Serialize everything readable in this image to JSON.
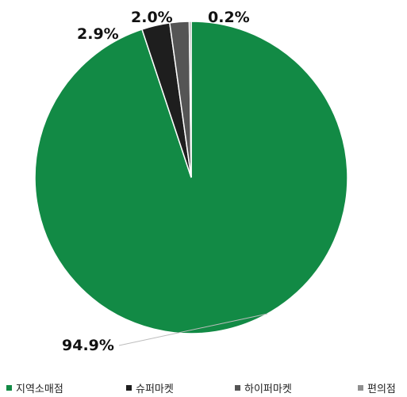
{
  "chart_data": {
    "type": "pie",
    "categories": [
      "지역소매점",
      "슈퍼마켓",
      "하이퍼마켓",
      "편의점"
    ],
    "values": [
      94.9,
      2.9,
      2.0,
      0.2
    ],
    "data_labels": [
      "94.9%",
      "2.9%",
      "2.0%",
      "0.2%"
    ],
    "colors": [
      "#128a45",
      "#1e1e1e",
      "#555555",
      "#8f8f8f"
    ],
    "start_angle_deg": 0,
    "direction": "clockwise",
    "legend_position": "bottom"
  }
}
